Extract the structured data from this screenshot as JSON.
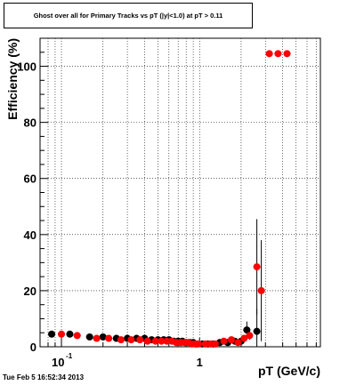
{
  "title": "Ghost over all for Primary Tracks vs pT (|y|<1.0) at pT > 0.11",
  "footer_timestamp": "Tue Feb  5 16:52:34 2013",
  "colors": {
    "series_black": "#000000",
    "series_red": "#ff0000",
    "grid": "#000000"
  },
  "chart_data": {
    "type": "scatter",
    "title": "Ghost over all for Primary Tracks vs pT (|y|<1.0) at pT > 0.11",
    "xlabel": "pT (GeV/c)",
    "ylabel": "Efficiency (%)",
    "xscale": "log",
    "xlim": [
      0.07,
      7.5
    ],
    "ylim": [
      0,
      110
    ],
    "grid": true,
    "x_major_ticks": [
      0.1,
      1
    ],
    "x_tick_labels": [
      "10",
      "-1",
      "1"
    ],
    "y_ticks": [
      0,
      20,
      40,
      60,
      80,
      100
    ],
    "y_tick_labels": [
      "0",
      "20",
      "40",
      "60",
      "80",
      "100"
    ],
    "series": [
      {
        "color": "black",
        "x": [
          0.085,
          0.115,
          0.16,
          0.2,
          0.25,
          0.3,
          0.35,
          0.4,
          0.45,
          0.5,
          0.55,
          0.6,
          0.65,
          0.7,
          0.75,
          0.8,
          0.85,
          0.9,
          0.95,
          1.05,
          1.15,
          1.25,
          1.4,
          1.6,
          1.8,
          2.0,
          2.2,
          2.6
        ],
        "y": [
          4.5,
          4.5,
          3.5,
          3.5,
          3.0,
          3.0,
          3.0,
          3.0,
          2.5,
          2.5,
          2.5,
          2.5,
          2.0,
          2.0,
          2.0,
          1.5,
          1.5,
          1.5,
          1.0,
          1.0,
          1.0,
          1.0,
          1.5,
          1.5,
          2.0,
          2.0,
          6.0,
          5.5
        ],
        "yerr": [
          1.0,
          0.8,
          0.6,
          0.5,
          0.5,
          0.5,
          0.5,
          0.5,
          0.5,
          0.5,
          0.5,
          0.5,
          0.5,
          0.5,
          0.5,
          0.5,
          0.5,
          0.5,
          0.5,
          0.5,
          0.5,
          0.6,
          0.7,
          0.8,
          1.0,
          1.2,
          3.0,
          8.0
        ]
      },
      {
        "color": "red",
        "x": [
          0.1,
          0.13,
          0.18,
          0.22,
          0.27,
          0.32,
          0.37,
          0.42,
          0.48,
          0.53,
          0.58,
          0.63,
          0.68,
          0.73,
          0.78,
          0.83,
          0.88,
          0.93,
          0.98,
          1.1,
          1.2,
          1.3,
          1.5,
          1.7,
          1.9,
          2.1,
          2.3,
          2.6,
          2.8,
          3.2,
          3.7,
          4.3
        ],
        "y": [
          4.5,
          4.0,
          3.0,
          3.0,
          2.5,
          2.5,
          2.5,
          2.0,
          2.0,
          2.0,
          2.0,
          2.0,
          1.5,
          1.5,
          1.5,
          1.5,
          1.0,
          1.0,
          1.0,
          1.0,
          1.0,
          1.0,
          2.0,
          2.5,
          1.5,
          3.0,
          4.0,
          28.5,
          20.0,
          104.5,
          104.5,
          104.5
        ],
        "yerr": [
          0.8,
          0.6,
          0.5,
          0.5,
          0.5,
          0.4,
          0.4,
          0.4,
          0.4,
          0.4,
          0.4,
          0.4,
          0.4,
          0.4,
          0.4,
          0.4,
          0.4,
          0.4,
          0.4,
          0.4,
          0.4,
          0.5,
          0.6,
          0.7,
          0.8,
          1.0,
          1.5,
          17.0,
          18.0,
          0,
          0,
          0
        ]
      }
    ]
  }
}
